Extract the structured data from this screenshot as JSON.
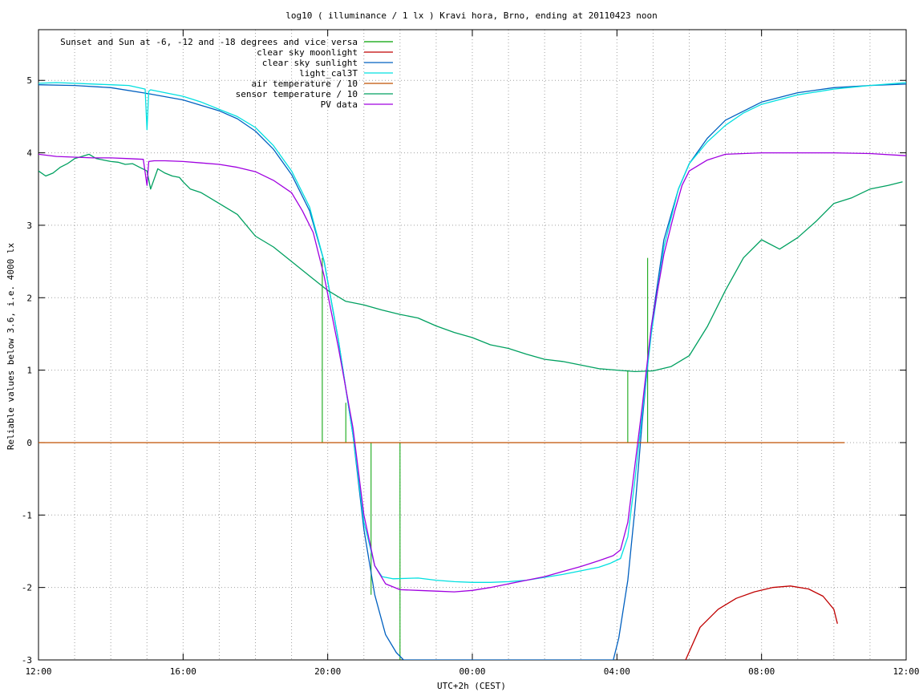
{
  "chart_data": {
    "type": "line",
    "title": "log10 ( illuminance / 1 lx ) Kravi hora, Brno, ending at 20110423 noon",
    "xlabel": "UTC+2h (CEST)",
    "ylabel": "Reliable values below 3.6, i.e. 4000 lx",
    "x_unit": "hours since 12:00 (local)",
    "xlim": [
      0,
      24
    ],
    "ylim": [
      -3,
      5.7
    ],
    "x_ticks": [
      0,
      4,
      8,
      12,
      16,
      20,
      24
    ],
    "x_tick_labels": [
      "12:00",
      "16:00",
      "20:00",
      "00:00",
      "04:00",
      "08:00",
      "12:00"
    ],
    "y_ticks": [
      -3,
      -2,
      -1,
      0,
      1,
      2,
      3,
      4,
      5
    ],
    "y_tick_labels": [
      "-3",
      "-2",
      "-1",
      "0",
      "1",
      "2",
      "3",
      "4",
      "5"
    ],
    "grid": true,
    "legend_position": "top-left",
    "series": [
      {
        "name": "Sunset and Sun at -6, -12 and -18 degrees and vice versa",
        "color": "#00a000",
        "style": "impulses",
        "x": [
          7.85,
          8.5,
          9.2,
          10.0,
          14.8,
          15.6,
          16.3,
          16.85
        ],
        "values": [
          2.55,
          0.55,
          -2.1,
          -3.0,
          0.0,
          0.0,
          1.0,
          2.55
        ]
      },
      {
        "name": "clear sky moonlight",
        "color": "#c00000",
        "x": [
          17.9,
          18.3,
          18.8,
          19.3,
          19.8,
          20.3,
          20.8,
          21.3,
          21.7,
          22.0,
          22.1
        ],
        "values": [
          -3.0,
          -2.55,
          -2.3,
          -2.15,
          -2.06,
          -2.0,
          -1.98,
          -2.02,
          -2.12,
          -2.3,
          -2.5
        ]
      },
      {
        "name": "clear sky sunlight",
        "color": "#0060c0",
        "x": [
          0,
          1,
          2,
          3,
          4,
          5,
          5.5,
          6,
          6.5,
          7,
          7.5,
          7.9,
          8.3,
          8.7,
          9.0,
          9.3,
          9.6,
          9.9,
          10.1,
          10.3,
          15.9,
          16.05,
          16.3,
          16.5,
          16.7,
          16.95,
          17.3,
          17.7,
          18.0,
          18.5,
          19,
          20,
          21,
          22,
          23,
          24
        ],
        "values": [
          4.94,
          4.93,
          4.9,
          4.82,
          4.73,
          4.58,
          4.47,
          4.3,
          4.05,
          3.7,
          3.2,
          2.5,
          1.4,
          0.1,
          -1.2,
          -2.1,
          -2.65,
          -2.9,
          -3.0,
          -3.0,
          -3.0,
          -2.7,
          -1.9,
          -0.9,
          0.3,
          1.6,
          2.8,
          3.5,
          3.85,
          4.2,
          4.45,
          4.7,
          4.83,
          4.9,
          4.93,
          4.95
        ]
      },
      {
        "name": "light_cal3T",
        "color": "#00e0e0",
        "x": [
          0,
          0.5,
          1,
          1.5,
          2,
          2.5,
          2.95,
          3.0,
          3.05,
          3.1,
          3.5,
          4,
          4.5,
          5,
          5.5,
          6,
          6.5,
          7,
          7.5,
          7.9,
          8.3,
          8.7,
          9.0,
          9.3,
          9.5,
          9.8,
          10.5,
          11,
          11.5,
          12,
          12.5,
          13,
          13.5,
          14,
          14.5,
          15,
          15.5,
          15.8,
          16.1,
          16.3,
          16.5,
          16.7,
          16.95,
          17.3,
          17.7,
          18.0,
          18.5,
          19,
          19.5,
          20,
          21,
          22,
          23,
          24
        ],
        "values": [
          4.96,
          4.97,
          4.96,
          4.95,
          4.94,
          4.93,
          4.88,
          4.32,
          4.85,
          4.87,
          4.83,
          4.78,
          4.7,
          4.6,
          4.5,
          4.35,
          4.1,
          3.75,
          3.25,
          2.5,
          1.4,
          0.1,
          -1.1,
          -1.7,
          -1.85,
          -1.88,
          -1.87,
          -1.9,
          -1.92,
          -1.93,
          -1.93,
          -1.92,
          -1.9,
          -1.86,
          -1.82,
          -1.77,
          -1.72,
          -1.67,
          -1.6,
          -1.3,
          -0.5,
          0.4,
          1.5,
          2.7,
          3.5,
          3.85,
          4.15,
          4.38,
          4.55,
          4.67,
          4.8,
          4.88,
          4.93,
          4.97
        ]
      },
      {
        "name": "air temperature / 10",
        "color": "#c05000",
        "x": [
          0,
          22.3
        ],
        "values": [
          0,
          0
        ]
      },
      {
        "name": "sensor temperature / 10",
        "color": "#00a060",
        "x": [
          0,
          0.2,
          0.4,
          0.6,
          0.8,
          1.0,
          1.2,
          1.4,
          1.6,
          1.8,
          2.0,
          2.2,
          2.4,
          2.6,
          2.8,
          3.0,
          3.1,
          3.3,
          3.5,
          3.7,
          3.9,
          4.0,
          4.2,
          4.5,
          5.0,
          5.5,
          6.0,
          6.5,
          7.0,
          7.5,
          8.0,
          8.5,
          9.0,
          9.5,
          10.0,
          10.5,
          11.0,
          11.5,
          12.0,
          12.5,
          13.0,
          13.5,
          14.0,
          14.5,
          15.0,
          15.5,
          16.0,
          16.5,
          17.0,
          17.5,
          18.0,
          18.5,
          19.0,
          19.5,
          20.0,
          20.5,
          21.0,
          21.5,
          22.0,
          22.5,
          23.0,
          23.5,
          23.9
        ],
        "values": [
          3.75,
          3.68,
          3.72,
          3.8,
          3.85,
          3.92,
          3.95,
          3.98,
          3.92,
          3.9,
          3.88,
          3.87,
          3.84,
          3.85,
          3.8,
          3.75,
          3.5,
          3.78,
          3.72,
          3.68,
          3.66,
          3.6,
          3.5,
          3.45,
          3.3,
          3.15,
          2.85,
          2.7,
          2.5,
          2.3,
          2.1,
          1.95,
          1.9,
          1.83,
          1.77,
          1.72,
          1.61,
          1.52,
          1.45,
          1.35,
          1.3,
          1.22,
          1.15,
          1.12,
          1.07,
          1.02,
          1.0,
          0.98,
          0.99,
          1.05,
          1.2,
          1.6,
          2.1,
          2.55,
          2.8,
          2.67,
          2.83,
          3.05,
          3.3,
          3.38,
          3.5,
          3.55,
          3.6
        ]
      },
      {
        "name": "PV data",
        "color": "#a000e0",
        "x": [
          0,
          0.5,
          1,
          1.5,
          2,
          2.5,
          2.9,
          3.0,
          3.05,
          3.2,
          3.5,
          4,
          4.5,
          5,
          5.5,
          6,
          6.5,
          7.0,
          7.3,
          7.6,
          7.9,
          8.3,
          8.7,
          9.0,
          9.3,
          9.6,
          10.0,
          10.5,
          11,
          11.5,
          12,
          12.5,
          13,
          13.5,
          14,
          14.5,
          15,
          15.5,
          15.9,
          16.1,
          16.3,
          16.5,
          16.7,
          16.95,
          17.3,
          17.6,
          17.8,
          18.0,
          18.5,
          19,
          20,
          21,
          22,
          23,
          24
        ],
        "values": [
          3.98,
          3.95,
          3.94,
          3.93,
          3.93,
          3.92,
          3.91,
          3.55,
          3.88,
          3.89,
          3.89,
          3.88,
          3.86,
          3.84,
          3.8,
          3.74,
          3.62,
          3.45,
          3.2,
          2.9,
          2.3,
          1.3,
          0.2,
          -1.0,
          -1.7,
          -1.95,
          -2.03,
          -2.04,
          -2.05,
          -2.06,
          -2.04,
          -2.0,
          -1.95,
          -1.9,
          -1.85,
          -1.78,
          -1.71,
          -1.63,
          -1.56,
          -1.48,
          -1.1,
          -0.3,
          0.5,
          1.6,
          2.6,
          3.2,
          3.55,
          3.75,
          3.9,
          3.98,
          4.0,
          4.0,
          4.0,
          3.99,
          3.96
        ]
      }
    ]
  }
}
